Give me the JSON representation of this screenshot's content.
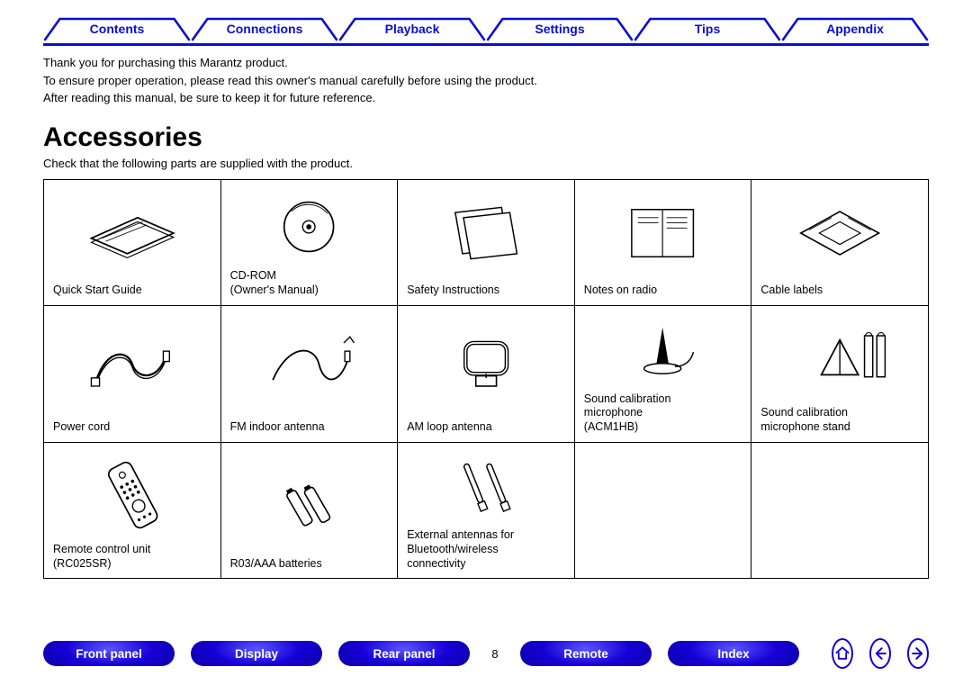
{
  "colors": {
    "nav_blue": "#0a0dd6",
    "footer_blue": "#1500d6",
    "text": "#000000",
    "border": "#000000",
    "background": "#ffffff"
  },
  "top_tabs": [
    {
      "label": "Contents"
    },
    {
      "label": "Connections"
    },
    {
      "label": "Playback"
    },
    {
      "label": "Settings"
    },
    {
      "label": "Tips"
    },
    {
      "label": "Appendix"
    }
  ],
  "intro": {
    "line1": "Thank you for purchasing this Marantz product.",
    "line2": "To ensure proper operation, please read this owner's manual carefully before using the product.",
    "line3": "After reading this manual, be sure to keep it for future reference."
  },
  "heading": "Accessories",
  "subtext": "Check that the following parts are supplied with the product.",
  "accessories": [
    {
      "icon": "booklet-iso",
      "caption": "Quick Start Guide"
    },
    {
      "icon": "cdrom",
      "caption": "CD-ROM\n(Owner's Manual)"
    },
    {
      "icon": "two-sheets",
      "caption": "Safety Instructions"
    },
    {
      "icon": "sheet-open",
      "caption": "Notes on radio"
    },
    {
      "icon": "label-sheet",
      "caption": "Cable labels"
    },
    {
      "icon": "power-cord",
      "caption": "Power cord"
    },
    {
      "icon": "wire-antenna",
      "caption": "FM indoor antenna"
    },
    {
      "icon": "loop-antenna",
      "caption": "AM loop antenna"
    },
    {
      "icon": "mic",
      "caption": "Sound calibration\nmicrophone\n(ACM1HB)"
    },
    {
      "icon": "mic-stand",
      "caption": "Sound calibration\nmicrophone stand"
    },
    {
      "icon": "remote",
      "caption": "Remote control unit\n(RC025SR)"
    },
    {
      "icon": "batteries",
      "caption": "R03/AAA batteries"
    },
    {
      "icon": "ext-antennas",
      "caption": "External antennas for\nBluetooth/wireless\nconnectivity"
    }
  ],
  "grid": {
    "cols": 5,
    "rows": 3
  },
  "footer": {
    "pills": [
      {
        "label": "Front panel"
      },
      {
        "label": "Display"
      },
      {
        "label": "Rear panel"
      }
    ],
    "page_number": "8",
    "pills_after": [
      {
        "label": "Remote"
      },
      {
        "label": "Index"
      }
    ],
    "nav_buttons": [
      "home",
      "prev",
      "next"
    ]
  }
}
